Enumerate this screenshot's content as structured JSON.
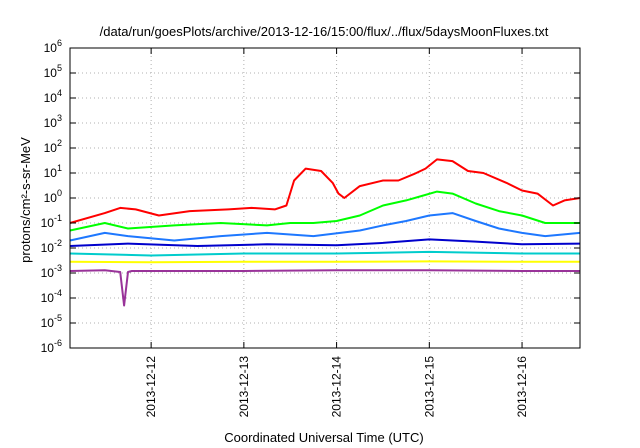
{
  "chart_data": {
    "type": "line",
    "title": "/data/run/goesPlots/archive/2013-12-16/15:00/flux/../flux/5daysMoonFluxes.txt",
    "xlabel": "Coordinated Universal Time (UTC)",
    "ylabel": "protons/cm²-s-sr-MeV",
    "yscale": "log",
    "ylim_exp": [
      -6,
      6
    ],
    "xlim": [
      "2013-12-11T03:00",
      "2013-12-16T15:00"
    ],
    "x_ticks": [
      "2013-12-12",
      "2013-12-13",
      "2013-12-14",
      "2013-12-15",
      "2013-12-16"
    ],
    "y_ticks": [
      {
        "base": "10",
        "exp": "-6"
      },
      {
        "base": "10",
        "exp": "-5"
      },
      {
        "base": "10",
        "exp": "-4"
      },
      {
        "base": "10",
        "exp": "-3"
      },
      {
        "base": "10",
        "exp": "-2"
      },
      {
        "base": "10",
        "exp": "-1"
      },
      {
        "base": "10",
        "exp": "0"
      },
      {
        "base": "10",
        "exp": "1"
      },
      {
        "base": "10",
        "exp": "2"
      },
      {
        "base": "10",
        "exp": "3"
      },
      {
        "base": "10",
        "exp": "4"
      },
      {
        "base": "10",
        "exp": "5"
      },
      {
        "base": "10",
        "exp": "6"
      }
    ],
    "grid": true,
    "series": [
      {
        "color": "#ff0000",
        "x": [
          "2013-12-11T03:00",
          "2013-12-11T12:00",
          "2013-12-11T16:00",
          "2013-12-11T20:00",
          "2013-12-12T02:00",
          "2013-12-12T10:00",
          "2013-12-12T20:00",
          "2013-12-13T02:00",
          "2013-12-13T08:00",
          "2013-12-13T11:00",
          "2013-12-13T13:00",
          "2013-12-13T16:00",
          "2013-12-13T20:00",
          "2013-12-13T23:00",
          "2013-12-14T00:30",
          "2013-12-14T02:00",
          "2013-12-14T06:00",
          "2013-12-14T12:00",
          "2013-12-14T16:00",
          "2013-12-14T20:00",
          "2013-12-14T23:00",
          "2013-12-15T02:00",
          "2013-12-15T06:00",
          "2013-12-15T10:00",
          "2013-12-15T14:00",
          "2013-12-15T20:00",
          "2013-12-16T00:00",
          "2013-12-16T04:00",
          "2013-12-16T08:00",
          "2013-12-16T11:00",
          "2013-12-16T15:00"
        ],
        "y": [
          0.1,
          0.25,
          0.4,
          0.35,
          0.2,
          0.3,
          0.35,
          0.4,
          0.35,
          0.5,
          5,
          15,
          12,
          4,
          1.5,
          1,
          3,
          5,
          5,
          9,
          15,
          35,
          30,
          12,
          10,
          4,
          2,
          1.5,
          0.5,
          0.8,
          1
        ]
      },
      {
        "color": "#00ff00",
        "x": [
          "2013-12-11T03:00",
          "2013-12-11T12:00",
          "2013-12-11T18:00",
          "2013-12-12T06:00",
          "2013-12-12T18:00",
          "2013-12-13T06:00",
          "2013-12-13T12:00",
          "2013-12-13T18:00",
          "2013-12-14T00:00",
          "2013-12-14T06:00",
          "2013-12-14T12:00",
          "2013-12-14T18:00",
          "2013-12-14T22:00",
          "2013-12-15T02:00",
          "2013-12-15T06:00",
          "2013-12-15T12:00",
          "2013-12-15T18:00",
          "2013-12-16T00:00",
          "2013-12-16T06:00",
          "2013-12-16T15:00"
        ],
        "y": [
          0.05,
          0.1,
          0.06,
          0.08,
          0.1,
          0.08,
          0.1,
          0.1,
          0.12,
          0.2,
          0.5,
          0.8,
          1.2,
          1.8,
          1.5,
          0.6,
          0.3,
          0.2,
          0.1,
          0.1
        ]
      },
      {
        "color": "#1e78ff",
        "x": [
          "2013-12-11T03:00",
          "2013-12-11T12:00",
          "2013-12-11T18:00",
          "2013-12-12T06:00",
          "2013-12-12T18:00",
          "2013-12-13T06:00",
          "2013-12-13T18:00",
          "2013-12-14T06:00",
          "2013-12-14T12:00",
          "2013-12-14T18:00",
          "2013-12-15T00:00",
          "2013-12-15T06:00",
          "2013-12-15T12:00",
          "2013-12-15T18:00",
          "2013-12-16T00:00",
          "2013-12-16T06:00",
          "2013-12-16T15:00"
        ],
        "y": [
          0.02,
          0.04,
          0.03,
          0.02,
          0.03,
          0.04,
          0.03,
          0.05,
          0.08,
          0.12,
          0.2,
          0.25,
          0.12,
          0.06,
          0.04,
          0.03,
          0.04
        ]
      },
      {
        "color": "#0000cc",
        "x": [
          "2013-12-11T03:00",
          "2013-12-11T18:00",
          "2013-12-12T12:00",
          "2013-12-13T06:00",
          "2013-12-14T00:00",
          "2013-12-14T12:00",
          "2013-12-15T00:00",
          "2013-12-15T12:00",
          "2013-12-16T00:00",
          "2013-12-16T15:00"
        ],
        "y": [
          0.012,
          0.015,
          0.012,
          0.014,
          0.013,
          0.016,
          0.022,
          0.018,
          0.014,
          0.015
        ]
      },
      {
        "color": "#00cccc",
        "x": [
          "2013-12-11T03:00",
          "2013-12-12T00:00",
          "2013-12-13T00:00",
          "2013-12-14T00:00",
          "2013-12-15T00:00",
          "2013-12-16T00:00",
          "2013-12-16T15:00"
        ],
        "y": [
          0.006,
          0.005,
          0.006,
          0.006,
          0.007,
          0.006,
          0.006
        ]
      },
      {
        "color": "#ffff00",
        "x": [
          "2013-12-11T03:00",
          "2013-12-12T00:00",
          "2013-12-13T00:00",
          "2013-12-14T00:00",
          "2013-12-15T00:00",
          "2013-12-16T00:00",
          "2013-12-16T15:00"
        ],
        "y": [
          0.0028,
          0.0027,
          0.0028,
          0.0028,
          0.0029,
          0.0028,
          0.0028
        ]
      },
      {
        "color": "#993399",
        "x": [
          "2013-12-11T03:00",
          "2013-12-11T12:00",
          "2013-12-11T16:00",
          "2013-12-11T17:00",
          "2013-12-11T18:00",
          "2013-12-11T19:00",
          "2013-12-12T00:00",
          "2013-12-13T00:00",
          "2013-12-14T00:00",
          "2013-12-15T00:00",
          "2013-12-16T00:00",
          "2013-12-16T15:00"
        ],
        "y": [
          0.0012,
          0.0013,
          0.0011,
          5e-05,
          0.0011,
          0.0012,
          0.0012,
          0.0012,
          0.0013,
          0.0013,
          0.0012,
          0.0012
        ]
      }
    ]
  }
}
